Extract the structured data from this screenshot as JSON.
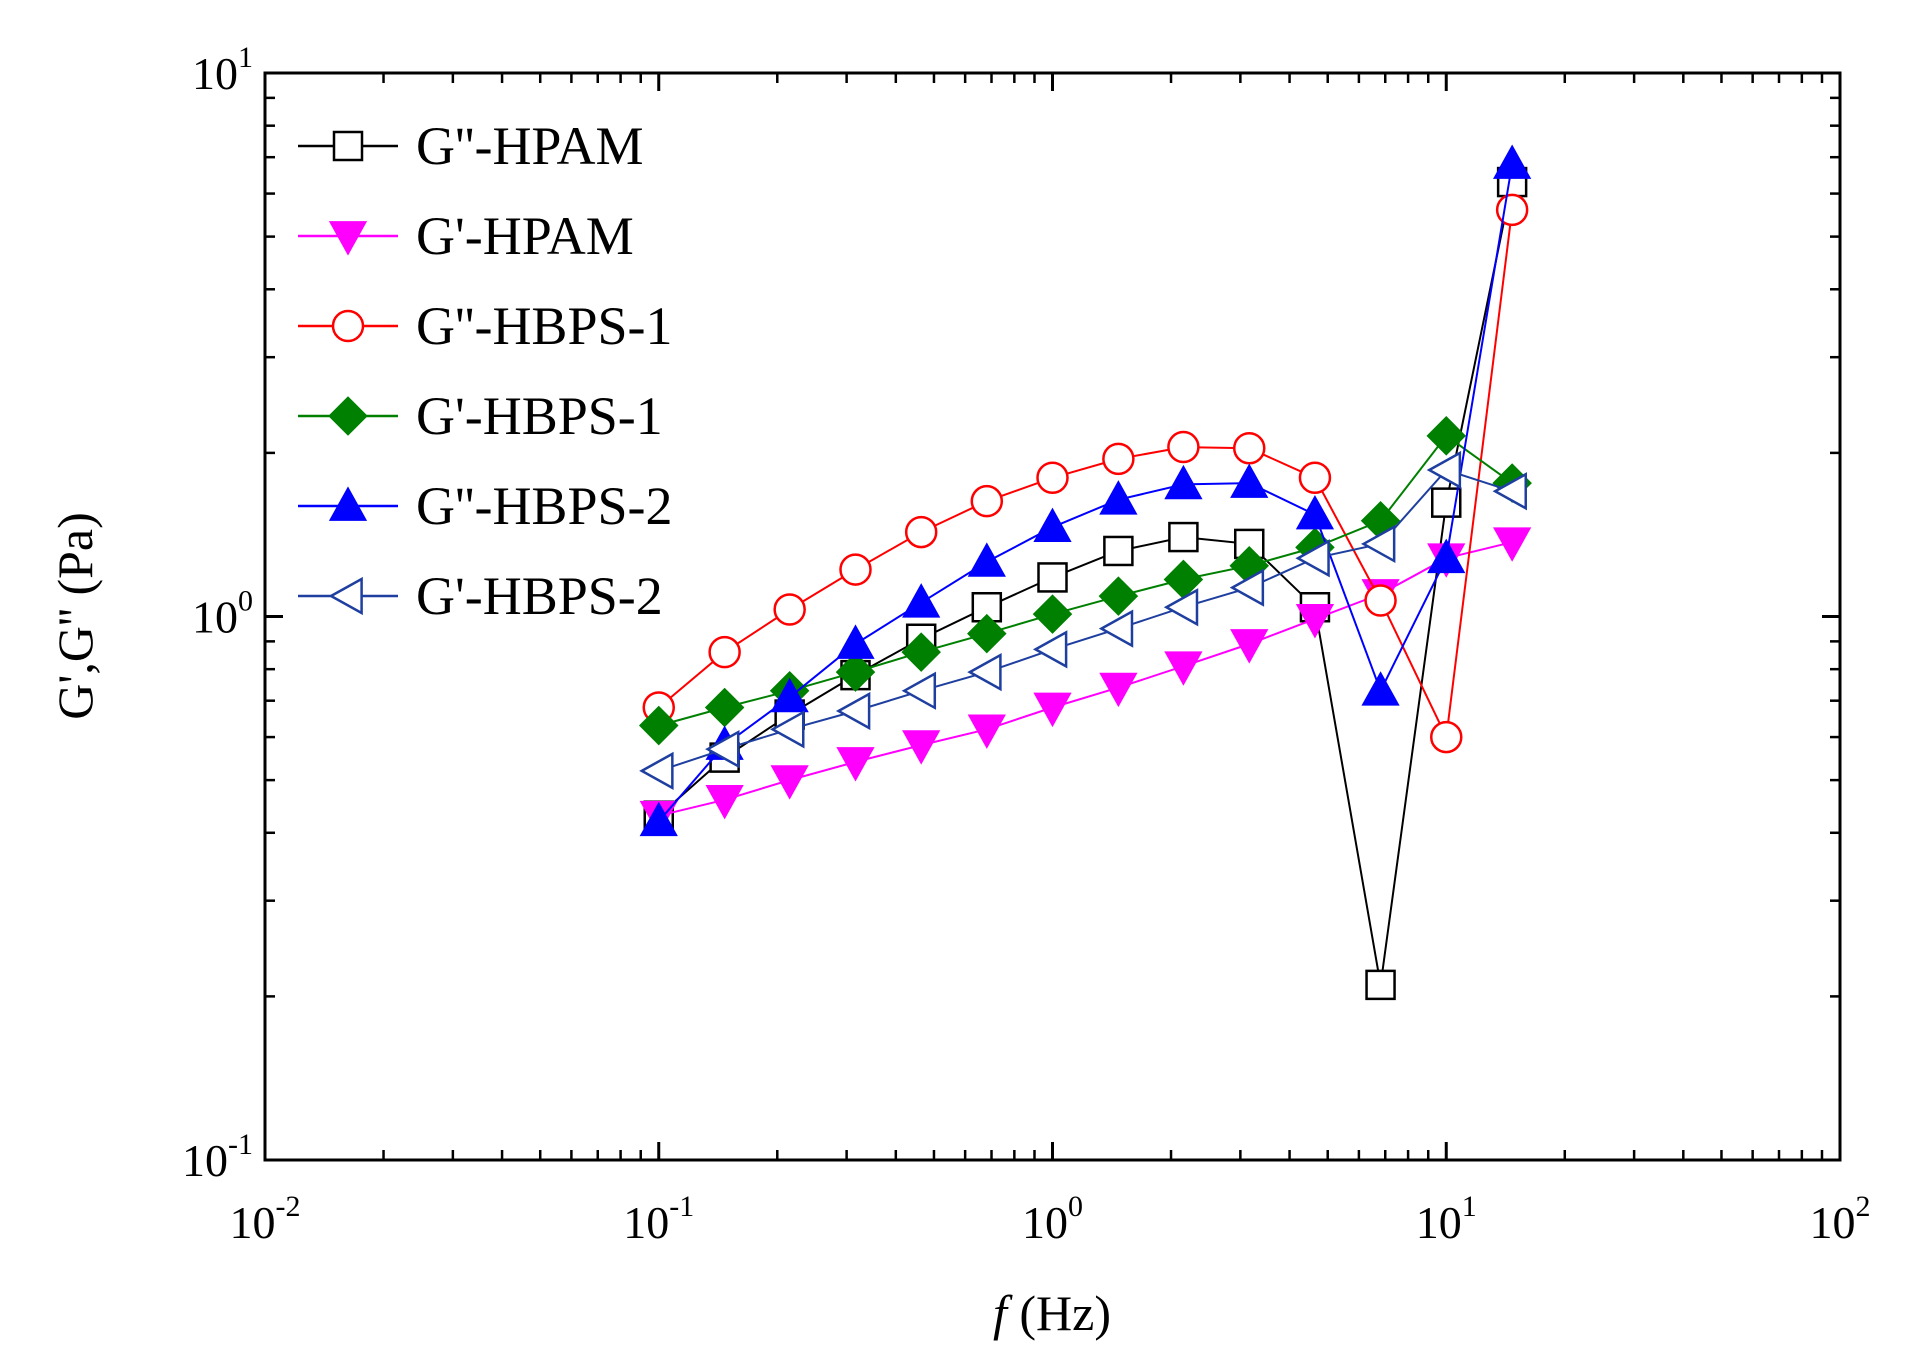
{
  "chart_data": {
    "type": "line",
    "title": "",
    "xlabel": {
      "italic": "f",
      "rest": " (Hz)"
    },
    "ylabel": "G',G'' (Pa)",
    "xscale": "log",
    "yscale": "log",
    "xlim": [
      0.01,
      100
    ],
    "ylim": [
      0.1,
      10
    ],
    "x_ticks": [
      {
        "base": "10",
        "exp": "-2"
      },
      {
        "base": "10",
        "exp": "-1"
      },
      {
        "base": "10",
        "exp": "0"
      },
      {
        "base": "10",
        "exp": "1"
      },
      {
        "base": "10",
        "exp": "2"
      }
    ],
    "y_ticks": [
      {
        "base": "10",
        "exp": "-1"
      },
      {
        "base": "10",
        "exp": "0"
      },
      {
        "base": "10",
        "exp": "1"
      }
    ],
    "legend_position": "top-left",
    "x": [
      0.1,
      0.147,
      0.215,
      0.316,
      0.464,
      0.681,
      1.0,
      1.47,
      2.15,
      3.16,
      4.64,
      6.81,
      10.0,
      14.7
    ],
    "series": [
      {
        "name": "G''-HPAM",
        "color": "#000000",
        "marker": "square",
        "filled": false,
        "values": [
          0.43,
          0.55,
          0.66,
          0.78,
          0.91,
          1.04,
          1.18,
          1.32,
          1.4,
          1.36,
          1.04,
          0.21,
          1.62,
          6.3
        ]
      },
      {
        "name": "G'-HPAM",
        "color": "#ff00ff",
        "marker": "triangle-down",
        "filled": true,
        "values": [
          0.43,
          0.46,
          0.5,
          0.54,
          0.58,
          0.62,
          0.68,
          0.74,
          0.81,
          0.89,
          0.99,
          1.1,
          1.28,
          1.37
        ]
      },
      {
        "name": "G''-HBPS-1",
        "color": "#ff0000",
        "marker": "circle",
        "filled": false,
        "values": [
          0.68,
          0.86,
          1.03,
          1.22,
          1.43,
          1.63,
          1.8,
          1.95,
          2.05,
          2.04,
          1.8,
          1.07,
          0.6,
          5.6
        ]
      },
      {
        "name": "G'-HBPS-1",
        "color": "#008000",
        "marker": "diamond",
        "filled": true,
        "values": [
          0.63,
          0.68,
          0.73,
          0.79,
          0.86,
          0.93,
          1.01,
          1.09,
          1.17,
          1.24,
          1.34,
          1.5,
          2.15,
          1.76
        ]
      },
      {
        "name": "G''-HBPS-2",
        "color": "#0000ff",
        "marker": "triangle-up",
        "filled": true,
        "values": [
          0.42,
          0.58,
          0.71,
          0.89,
          1.06,
          1.26,
          1.46,
          1.64,
          1.75,
          1.76,
          1.54,
          0.73,
          1.28,
          6.8
        ]
      },
      {
        "name": "G'-HBPS-2",
        "color": "#1f3fa0",
        "marker": "triangle-left",
        "filled": false,
        "values": [
          0.52,
          0.57,
          0.62,
          0.67,
          0.73,
          0.79,
          0.87,
          0.95,
          1.04,
          1.13,
          1.28,
          1.36,
          1.86,
          1.7
        ]
      }
    ]
  }
}
